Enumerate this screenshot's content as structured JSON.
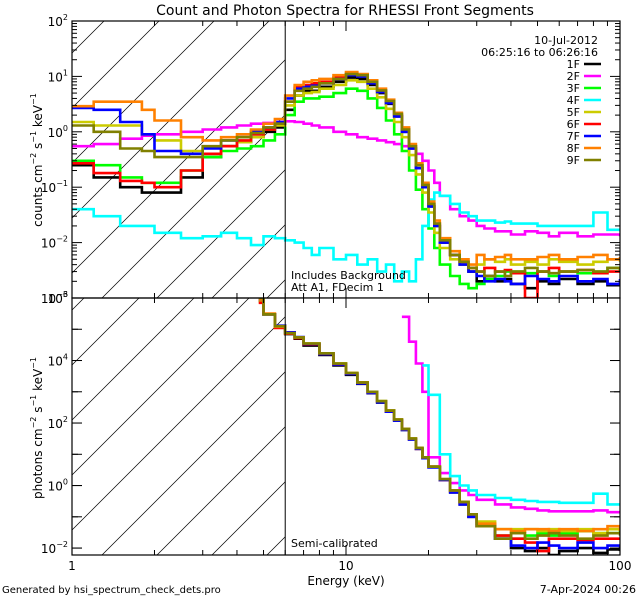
{
  "chart_data": [
    {
      "type": "line",
      "panel": "top",
      "title": "Count and Photon Spectra for RHESSI Front Segments",
      "xlabel": "",
      "ylabel": "counts cm^-2 s^-1 keV^-1",
      "xscale": "log",
      "yscale": "log",
      "xlim": [
        1,
        100
      ],
      "ylim": [
        0.001,
        100
      ],
      "y_tick_labels": [
        "10^-3",
        "10^-2",
        "10^-1",
        "10^0",
        "10^1",
        "10^2"
      ],
      "annotations": [
        "10-Jul-2012",
        "06:25:16 to 06:26:16",
        "Includes Background",
        "Att A1, FDecim 1"
      ],
      "legend_position": "top-right",
      "vertical_marker_keV": 6,
      "energies": [
        1.0,
        1.2,
        1.5,
        1.8,
        2.0,
        2.5,
        3.0,
        3.5,
        4.0,
        4.5,
        5.0,
        5.5,
        6.0,
        6.5,
        7.0,
        7.5,
        8.0,
        9.0,
        10.0,
        11.0,
        12.0,
        13.0,
        14.0,
        15.0,
        16.0,
        17.0,
        18.0,
        19.0,
        20.0,
        21.0,
        22.0,
        24.0,
        26.0,
        28.0,
        30.0,
        32.0,
        35.0,
        38.0,
        40.0,
        45.0,
        50.0,
        55.0,
        60.0,
        70.0,
        80.0,
        90.0,
        100.0
      ],
      "series": [
        {
          "name": "1F",
          "color": "#000000",
          "values": [
            0.25,
            0.15,
            0.1,
            0.08,
            0.08,
            0.15,
            0.35,
            0.55,
            0.65,
            0.8,
            1.0,
            1.2,
            2.5,
            4.5,
            5.5,
            5.5,
            6.5,
            8.0,
            9.5,
            9.0,
            7.0,
            5.0,
            3.2,
            1.9,
            1.0,
            0.5,
            0.22,
            0.1,
            0.045,
            0.02,
            0.01,
            0.006,
            0.004,
            0.003,
            0.002,
            0.0025,
            0.002,
            0.0022,
            0.0018,
            0.0015,
            0.002,
            0.0018,
            0.0022,
            0.0018,
            0.002,
            0.0017,
            0.002
          ]
        },
        {
          "name": "2F",
          "color": "#ff00ff",
          "values": [
            0.55,
            0.6,
            0.75,
            0.85,
            0.9,
            1.0,
            1.1,
            1.2,
            1.3,
            1.4,
            1.45,
            1.5,
            1.55,
            1.5,
            1.4,
            1.3,
            1.2,
            1.0,
            0.9,
            0.8,
            0.75,
            0.7,
            0.65,
            0.6,
            0.55,
            0.5,
            0.4,
            0.3,
            0.2,
            0.12,
            0.07,
            0.04,
            0.03,
            0.025,
            0.02,
            0.018,
            0.016,
            0.016,
            0.014,
            0.016,
            0.015,
            0.013,
            0.015,
            0.013,
            0.014,
            0.014,
            0.013
          ]
        },
        {
          "name": "3F",
          "color": "#00ff00",
          "values": [
            0.3,
            0.25,
            0.15,
            0.12,
            0.12,
            0.2,
            0.35,
            0.45,
            0.5,
            0.55,
            0.7,
            0.9,
            2.0,
            3.5,
            4.0,
            4.0,
            4.3,
            5.0,
            6.0,
            5.5,
            4.0,
            2.7,
            1.6,
            0.9,
            0.45,
            0.2,
            0.09,
            0.04,
            0.018,
            0.008,
            0.004,
            0.0025,
            0.0018,
            0.0015,
            0.0018,
            0.0022,
            0.0025,
            0.003,
            0.003,
            0.0028,
            0.003,
            0.0025,
            0.003,
            0.0028,
            0.003,
            0.0035,
            0.003
          ]
        },
        {
          "name": "4F",
          "color": "#00ffff",
          "values": [
            0.04,
            0.03,
            0.02,
            0.02,
            0.015,
            0.012,
            0.013,
            0.015,
            0.012,
            0.009,
            0.013,
            0.012,
            0.011,
            0.01,
            0.008,
            0.006,
            0.008,
            0.005,
            0.006,
            0.004,
            0.005,
            0.003,
            0.004,
            0.002,
            0.003,
            0.002,
            0.005,
            0.02,
            0.06,
            0.08,
            0.07,
            0.05,
            0.035,
            0.03,
            0.025,
            0.025,
            0.023,
            0.024,
            0.022,
            0.022,
            0.02,
            0.02,
            0.02,
            0.02,
            0.035,
            0.017,
            0.016
          ]
        },
        {
          "name": "5F",
          "color": "#cccc00",
          "values": [
            1.5,
            1.3,
            1.3,
            0.9,
            0.7,
            0.45,
            0.4,
            0.55,
            0.65,
            0.8,
            1.1,
            1.3,
            3.0,
            4.5,
            5.0,
            5.2,
            6.0,
            7.0,
            8.5,
            8.0,
            6.0,
            4.2,
            2.6,
            1.5,
            0.8,
            0.38,
            0.17,
            0.08,
            0.035,
            0.015,
            0.008,
            0.005,
            0.004,
            0.0035,
            0.004,
            0.005,
            0.0045,
            0.005,
            0.004,
            0.0045,
            0.004,
            0.005,
            0.0045,
            0.004,
            0.0045,
            0.005,
            0.0045
          ]
        },
        {
          "name": "6F",
          "color": "#ff0000",
          "values": [
            0.27,
            0.18,
            0.13,
            0.12,
            0.1,
            0.2,
            0.4,
            0.55,
            0.7,
            0.9,
            1.1,
            1.4,
            3.5,
            6.5,
            7.0,
            7.5,
            8.0,
            9.5,
            11.0,
            10.5,
            8.0,
            5.5,
            3.5,
            2.0,
            1.1,
            0.55,
            0.25,
            0.11,
            0.05,
            0.022,
            0.011,
            0.006,
            0.0045,
            0.0035,
            0.003,
            0.0035,
            0.003,
            0.0032,
            0.0028,
            0.001,
            0.003,
            0.0035,
            0.003,
            0.0032,
            0.0028,
            0.003,
            0.003
          ]
        },
        {
          "name": "7F",
          "color": "#0000ff",
          "values": [
            2.7,
            2.5,
            1.5,
            0.9,
            0.45,
            0.4,
            0.5,
            0.7,
            0.8,
            1.0,
            1.2,
            1.5,
            4.0,
            6.0,
            6.5,
            6.8,
            7.5,
            9.0,
            10.5,
            10.0,
            7.5,
            5.2,
            3.3,
            1.9,
            1.0,
            0.5,
            0.22,
            0.1,
            0.045,
            0.02,
            0.01,
            0.006,
            0.004,
            0.003,
            0.0025,
            0.002,
            0.0022,
            0.002,
            0.0018,
            0.0025,
            0.0022,
            0.002,
            0.0025,
            0.002,
            0.0022,
            0.0018,
            0.0022
          ]
        },
        {
          "name": "8F",
          "color": "#ff8000",
          "values": [
            2.9,
            3.5,
            3.5,
            2.5,
            1.6,
            0.8,
            0.7,
            0.8,
            0.9,
            1.1,
            1.4,
            1.7,
            4.5,
            7.0,
            8.0,
            8.5,
            9.0,
            10.5,
            12.0,
            11.0,
            8.5,
            6.0,
            3.8,
            2.2,
            1.2,
            0.6,
            0.27,
            0.12,
            0.055,
            0.025,
            0.012,
            0.007,
            0.005,
            0.004,
            0.006,
            0.005,
            0.0055,
            0.006,
            0.005,
            0.005,
            0.0055,
            0.006,
            0.005,
            0.0055,
            0.006,
            0.005,
            0.0055
          ]
        },
        {
          "name": "9F",
          "color": "#808000",
          "values": [
            1.3,
            1.0,
            0.5,
            0.45,
            0.35,
            0.35,
            0.55,
            0.7,
            0.8,
            0.95,
            1.2,
            1.4,
            3.5,
            5.5,
            6.0,
            6.5,
            7.5,
            9.0,
            11.0,
            10.5,
            8.0,
            5.6,
            3.6,
            2.1,
            1.1,
            0.55,
            0.25,
            0.11,
            0.05,
            0.022,
            0.011,
            0.006,
            0.0045,
            0.0035,
            0.003,
            0.0025,
            0.003,
            0.0025,
            0.003,
            0.0035,
            0.003,
            0.0028,
            0.003,
            0.0032,
            0.003,
            0.0035,
            0.003
          ]
        }
      ]
    },
    {
      "type": "line",
      "panel": "bottom",
      "xlabel": "Energy (keV)",
      "ylabel": "photons cm^-2 s^-1 keV^-1",
      "xscale": "log",
      "yscale": "log",
      "xlim": [
        1,
        100
      ],
      "ylim": [
        0.006,
        1000000
      ],
      "x_tick_labels": [
        "1",
        "10",
        "100"
      ],
      "y_tick_labels": [
        "10^-2",
        "10^0",
        "10^2",
        "10^4",
        "10^6"
      ],
      "annotations": [
        "Semi-calibrated"
      ],
      "vertical_marker_keV": 6,
      "energies": [
        4.8,
        5.0,
        5.5,
        6.0,
        6.5,
        7.0,
        8.0,
        9.0,
        10.0,
        11.0,
        12.0,
        13.0,
        14.0,
        15.0,
        16.0,
        17.0,
        18.0,
        19.0,
        20.0,
        22.0,
        24.0,
        26.0,
        28.0,
        30.0,
        35.0,
        40.0,
        45.0,
        50.0,
        55.0,
        60.0,
        70.0,
        80.0,
        90.0,
        100.0
      ],
      "series": [
        {
          "name": "1F",
          "color": "#000000",
          "values": [
            800000,
            300000,
            120000,
            70000,
            50000,
            30000,
            15000,
            7000,
            3500,
            1800,
            900,
            450,
            230,
            120,
            60,
            30,
            15,
            8,
            4,
            1.5,
            0.6,
            0.25,
            0.1,
            0.05,
            0.02,
            0.01,
            0.008,
            0.01,
            0.006,
            0.008,
            0.01,
            0.007,
            0.009,
            0.008
          ]
        },
        {
          "name": "2F",
          "color": "#ff00ff",
          "values": [
            null,
            null,
            null,
            null,
            null,
            null,
            null,
            null,
            null,
            null,
            null,
            null,
            null,
            null,
            250000,
            40000,
            8000,
            1000,
            8,
            2.5,
            1.2,
            0.7,
            0.5,
            0.35,
            0.25,
            0.2,
            0.18,
            0.16,
            0.15,
            0.15,
            0.15,
            0.16,
            0.14,
            0.15
          ]
        },
        {
          "name": "3F",
          "color": "#00ff00",
          "values": [
            800000,
            300000,
            120000,
            75000,
            55000,
            35000,
            17000,
            8000,
            4000,
            2000,
            1000,
            500,
            250,
            130,
            65,
            32,
            16,
            8,
            4,
            1.6,
            0.7,
            0.3,
            0.12,
            0.06,
            0.025,
            0.02,
            0.025,
            0.03,
            0.025,
            0.03,
            0.035,
            0.03,
            0.03,
            0.04
          ]
        },
        {
          "name": "4F",
          "color": "#00ffff",
          "values": [
            null,
            null,
            null,
            null,
            null,
            null,
            null,
            null,
            null,
            null,
            null,
            null,
            null,
            null,
            null,
            null,
            null,
            7000,
            800,
            10,
            2.0,
            1.0,
            0.7,
            0.5,
            0.4,
            0.35,
            0.32,
            0.3,
            0.3,
            0.28,
            0.28,
            0.55,
            0.25,
            0.23
          ]
        },
        {
          "name": "5F",
          "color": "#cccc00",
          "values": [
            800000,
            300000,
            120000,
            75000,
            55000,
            35000,
            17000,
            8000,
            4000,
            2000,
            1000,
            500,
            250,
            130,
            65,
            32,
            16,
            8,
            4,
            1.6,
            0.7,
            0.3,
            0.12,
            0.07,
            0.04,
            0.04,
            0.04,
            0.035,
            0.04,
            0.035,
            0.04,
            0.03,
            0.04,
            0.035
          ]
        },
        {
          "name": "6F",
          "color": "#ff0000",
          "values": [
            700000,
            300000,
            110000,
            72000,
            52000,
            33000,
            16000,
            7500,
            3800,
            1900,
            950,
            480,
            240,
            125,
            62,
            31,
            15,
            8,
            4,
            1.5,
            0.65,
            0.28,
            0.11,
            0.05,
            0.025,
            0.02,
            0.015,
            0.008,
            0.02,
            0.02,
            0.018,
            0.02,
            0.02,
            0.022
          ]
        },
        {
          "name": "7F",
          "color": "#0000ff",
          "values": [
            900000,
            300000,
            130000,
            80000,
            56000,
            34000,
            16000,
            7500,
            3700,
            1850,
            920,
            460,
            230,
            120,
            60,
            30,
            15,
            7.5,
            3.8,
            1.5,
            0.6,
            0.25,
            0.1,
            0.05,
            0.02,
            0.012,
            0.01,
            0.015,
            0.012,
            0.01,
            0.015,
            0.01,
            0.012,
            0.01
          ]
        },
        {
          "name": "8F",
          "color": "#ff8000",
          "values": [
            900000,
            320000,
            120000,
            75000,
            55000,
            35000,
            17000,
            8000,
            4000,
            2000,
            1000,
            500,
            250,
            130,
            65,
            32,
            16,
            8,
            4,
            1.6,
            0.7,
            0.3,
            0.12,
            0.06,
            0.04,
            0.035,
            0.04,
            0.04,
            0.035,
            0.04,
            0.035,
            0.04,
            0.05,
            0.035
          ]
        },
        {
          "name": "9F",
          "color": "#808000",
          "values": [
            1000000,
            300000,
            125000,
            75000,
            55000,
            35000,
            17000,
            8000,
            4000,
            2000,
            1000,
            500,
            250,
            130,
            65,
            32,
            16,
            8,
            4,
            1.6,
            0.7,
            0.3,
            0.12,
            0.05,
            0.02,
            0.03,
            0.02,
            0.025,
            0.03,
            0.025,
            0.02,
            0.025,
            0.03,
            0.025
          ]
        }
      ]
    }
  ],
  "footer": {
    "generated_by": "Generated by hsi_spectrum_check_dets.pro",
    "timestamp": "7-Apr-2024 00:26"
  }
}
